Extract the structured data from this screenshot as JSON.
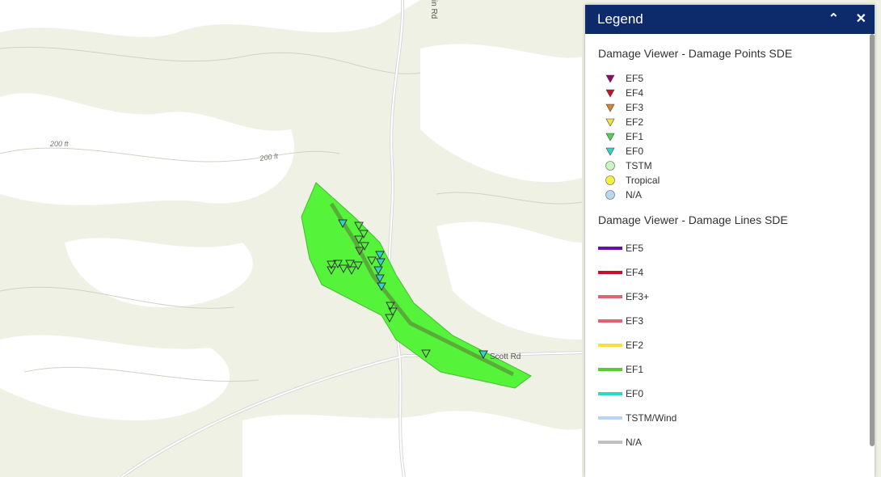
{
  "legend": {
    "title": "Legend",
    "sections": [
      {
        "title": "Damage Viewer - Damage Points SDE",
        "symbol": "point",
        "items": [
          {
            "label": "EF5",
            "shape": "triangle",
            "color": "#8b0a6e"
          },
          {
            "label": "EF4",
            "shape": "triangle",
            "color": "#c8102e"
          },
          {
            "label": "EF3",
            "shape": "triangle",
            "color": "#d9822b"
          },
          {
            "label": "EF2",
            "shape": "triangle",
            "color": "#f2e33a"
          },
          {
            "label": "EF1",
            "shape": "triangle",
            "color": "#4fd44f"
          },
          {
            "label": "EF0",
            "shape": "triangle",
            "color": "#2fd6c6"
          },
          {
            "label": "TSTM",
            "shape": "circle",
            "color": "#c8f5c0"
          },
          {
            "label": "Tropical",
            "shape": "circle",
            "color": "#f5f03a"
          },
          {
            "label": "N/A",
            "shape": "circle",
            "color": "#b8d8ee"
          }
        ]
      },
      {
        "title": "Damage Viewer - Damage Lines SDE",
        "symbol": "line",
        "items": [
          {
            "label": "EF5",
            "color": "#6a0dad"
          },
          {
            "label": "EF4",
            "color": "#c8102e"
          },
          {
            "label": "EF3+",
            "color": "#e06470"
          },
          {
            "label": "EF3",
            "color": "#e06470"
          },
          {
            "label": "EF2",
            "color": "#f7e040"
          },
          {
            "label": "EF1",
            "color": "#5cc83a"
          },
          {
            "label": "EF0",
            "color": "#2fd6c6"
          },
          {
            "label": "TSTM/Wind",
            "color": "#b8d4f5"
          },
          {
            "label": "N/A",
            "color": "#c0c0c0"
          }
        ]
      }
    ]
  },
  "map": {
    "labels": [
      "200 ft",
      "200 ft",
      "Scott Rd",
      "in Rd"
    ]
  }
}
